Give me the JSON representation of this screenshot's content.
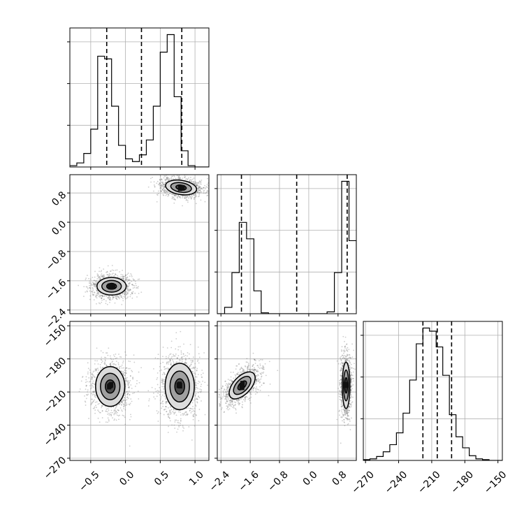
{
  "chart_data": {
    "type": "scatter",
    "figure": "corner",
    "grid": true,
    "variables": [
      {
        "ticks": [
          -0.5,
          0.0,
          0.5,
          1.0
        ],
        "tick_labels": [
          "−0.5",
          "0.0",
          "0.5",
          "1.0"
        ],
        "range": [
          -0.8,
          1.2
        ]
      },
      {
        "ticks": [
          -2.4,
          -1.6,
          -0.8,
          0.0,
          0.8
        ],
        "tick_labels": [
          "−2.4",
          "−1.6",
          "−0.8",
          "0.0",
          "0.8"
        ],
        "range": [
          -2.5,
          1.3
        ]
      },
      {
        "ticks": [
          -270,
          -240,
          -210,
          -180,
          -150
        ],
        "tick_labels": [
          "−270",
          "−240",
          "−210",
          "−180",
          "−150"
        ],
        "range": [
          -272,
          -146
        ]
      }
    ],
    "histograms": [
      {
        "variable": 0,
        "bin_edges": [
          -0.8,
          -0.7,
          -0.6,
          -0.5,
          -0.4,
          -0.3,
          -0.2,
          -0.1,
          0.0,
          0.1,
          0.2,
          0.3,
          0.4,
          0.5,
          0.6,
          0.7,
          0.8,
          0.9,
          1.0,
          1.1,
          1.2
        ],
        "counts": [
          1,
          3,
          10,
          28,
          82,
          80,
          45,
          16,
          6,
          4,
          9,
          20,
          45,
          85,
          98,
          52,
          12,
          1,
          0,
          0
        ],
        "quantiles": [
          -0.27,
          0.23,
          0.81
        ]
      },
      {
        "variable": 1,
        "bin_edges": [
          -2.5,
          -2.3,
          -2.1,
          -1.9,
          -1.7,
          -1.5,
          -1.3,
          -1.1,
          -0.9,
          -0.7,
          -0.5,
          -0.3,
          -0.1,
          0.1,
          0.3,
          0.5,
          0.7,
          0.9,
          1.1,
          1.3
        ],
        "counts": [
          0,
          7,
          45,
          100,
          82,
          25,
          1,
          0,
          0,
          0,
          0,
          0,
          0,
          0,
          0,
          2,
          45,
          145,
          80,
          5
        ],
        "quantiles": [
          -1.84,
          -0.33,
          1.05
        ]
      },
      {
        "variable": 2,
        "bin_edges": [
          -272,
          -266,
          -260,
          -254,
          -248,
          -242,
          -236,
          -230,
          -224,
          -218,
          -212,
          -206,
          -200,
          -194,
          -188,
          -182,
          -176,
          -170,
          -164,
          -158,
          -152,
          -146
        ],
        "counts": [
          1,
          2,
          5,
          11,
          20,
          35,
          60,
          102,
          148,
          168,
          164,
          144,
          108,
          58,
          30,
          16,
          6,
          2,
          1,
          0,
          0
        ],
        "quantiles": [
          -218,
          -205,
          -192
        ]
      }
    ],
    "density_panels": [
      {
        "x_variable": 0,
        "y_variable": 1,
        "clusters": [
          {
            "center": [
              -0.2,
              -1.75
            ],
            "spread": [
              0.14,
              0.16
            ],
            "tilt": 0,
            "points": 1100
          },
          {
            "center": [
              0.8,
              0.95
            ],
            "spread": [
              0.15,
              0.13
            ],
            "tilt": 0.15,
            "points": 1100
          }
        ]
      },
      {
        "x_variable": 0,
        "y_variable": 2,
        "clusters": [
          {
            "center": [
              -0.22,
              -205
            ],
            "spread": [
              0.14,
              12
            ],
            "tilt": 0,
            "points": 1100
          },
          {
            "center": [
              0.78,
              -205
            ],
            "spread": [
              0.14,
              14
            ],
            "tilt": 0,
            "points": 1100
          }
        ]
      },
      {
        "x_variable": 1,
        "y_variable": 2,
        "clusters": [
          {
            "center": [
              -1.82,
              -204
            ],
            "spread": [
              0.16,
              10
            ],
            "tilt": 0.75,
            "points": 1100
          },
          {
            "center": [
              1.02,
              -204
            ],
            "spread": [
              0.07,
              14
            ],
            "tilt": 0,
            "points": 1100
          }
        ]
      }
    ],
    "contour_levels": [
      1.5,
      1.0,
      0.5
    ]
  }
}
